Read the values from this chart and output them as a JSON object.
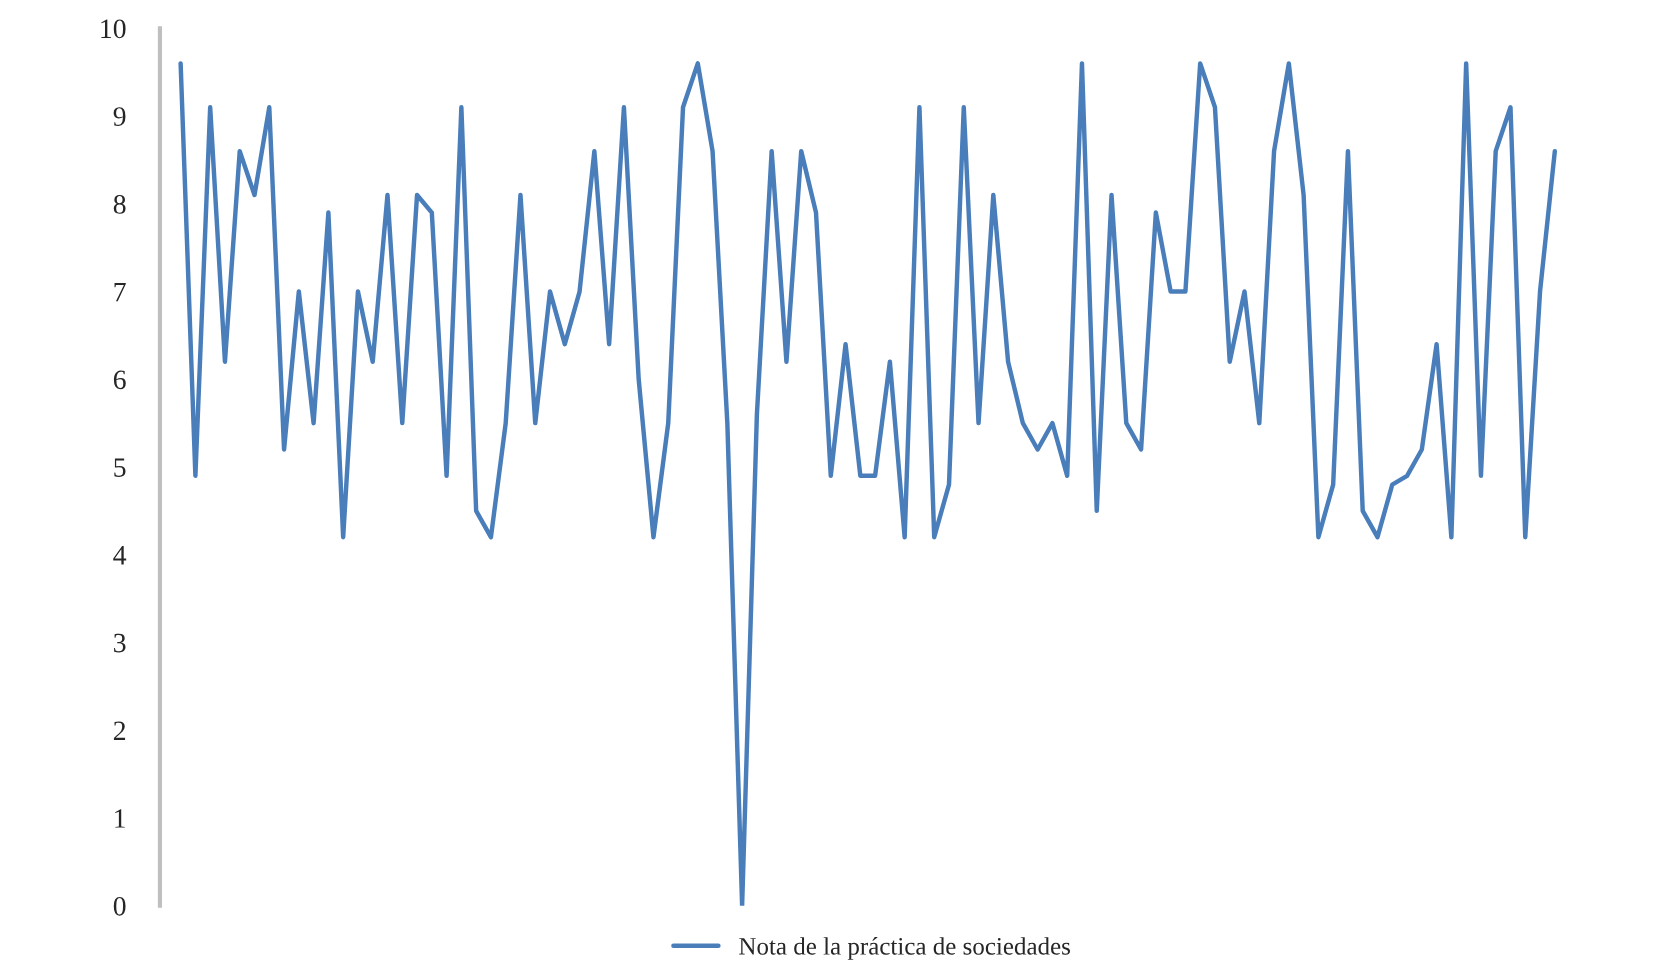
{
  "chart_data": {
    "type": "line",
    "categories": [
      null,
      null,
      null,
      null,
      null,
      null,
      null,
      null,
      null,
      null,
      null,
      null,
      null,
      null,
      null,
      null,
      null,
      null,
      null,
      null,
      null,
      null,
      null,
      null,
      null,
      null,
      null,
      null,
      null,
      null,
      null,
      null,
      null,
      null,
      null,
      null,
      null,
      null,
      null,
      null,
      null,
      null,
      null,
      null,
      null,
      null,
      null,
      null,
      null,
      null,
      null,
      null,
      null,
      null,
      null,
      null,
      null,
      null,
      null,
      null,
      null,
      null,
      null,
      null,
      null,
      null,
      null,
      null,
      null,
      null,
      null,
      null,
      null,
      null,
      null,
      null,
      null,
      null,
      null,
      null,
      null,
      null,
      null,
      null,
      null,
      null,
      null,
      null,
      null,
      null,
      null,
      null,
      null,
      null
    ],
    "series": [
      {
        "name": "Nota de la práctica de sociedades",
        "color": "#4a7ebb",
        "values": [
          9.6,
          4.9,
          9.1,
          6.2,
          8.6,
          8.1,
          9.1,
          5.2,
          7.0,
          5.5,
          7.9,
          4.2,
          7.0,
          6.2,
          8.1,
          5.5,
          8.1,
          7.9,
          4.9,
          9.1,
          4.5,
          4.2,
          5.5,
          8.1,
          5.5,
          7.0,
          6.4,
          7.0,
          8.6,
          6.4,
          9.1,
          6.0,
          4.2,
          5.5,
          9.1,
          9.6,
          8.6,
          5.5,
          0,
          5.6,
          8.6,
          6.2,
          8.6,
          7.9,
          4.9,
          6.4,
          4.9,
          4.9,
          6.2,
          4.2,
          9.1,
          4.2,
          4.8,
          9.1,
          5.5,
          8.1,
          6.2,
          5.5,
          5.2,
          5.5,
          4.9,
          9.6,
          4.5,
          8.1,
          5.5,
          5.2,
          7.9,
          7.0,
          7.0,
          9.6,
          9.1,
          6.2,
          7.0,
          5.5,
          8.6,
          9.6,
          8.1,
          4.2,
          4.8,
          8.6,
          4.5,
          4.2,
          4.8,
          4.9,
          5.2,
          6.4,
          4.2,
          9.6,
          4.9,
          8.6,
          9.1,
          4.2,
          7.0,
          8.6
        ]
      }
    ],
    "ylim": [
      0,
      10
    ],
    "yticks": [
      0,
      1,
      2,
      3,
      4,
      5,
      6,
      7,
      8,
      9,
      10
    ],
    "tick_labels": "y",
    "grid": false,
    "legend": "bottom",
    "marker": "none",
    "line_style": "solid"
  }
}
